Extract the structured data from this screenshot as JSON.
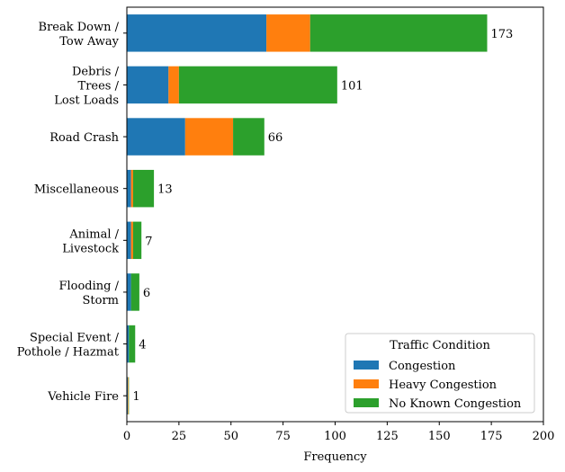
{
  "chart_data": {
    "type": "bar",
    "orientation": "horizontal",
    "stacked": true,
    "categories": [
      [
        "Break Down /",
        "Tow Away"
      ],
      [
        "Debris /",
        "Trees /",
        "Lost Loads"
      ],
      [
        "Road Crash"
      ],
      [
        "Miscellaneous"
      ],
      [
        "Animal /",
        "Livestock"
      ],
      [
        "Flooding /",
        "Storm"
      ],
      [
        "Special Event /",
        "Pothole / Hazmat"
      ],
      [
        "Vehicle Fire"
      ]
    ],
    "series": [
      {
        "name": "Congestion",
        "color": "#1f77b4",
        "values": [
          67,
          20,
          28,
          2,
          2,
          2,
          1,
          0.5
        ]
      },
      {
        "name": "Heavy Congestion",
        "color": "#ff7f0e",
        "values": [
          21,
          5,
          23,
          1,
          1,
          0,
          0,
          0.3
        ]
      },
      {
        "name": "No Known Congestion",
        "color": "#2ca02c",
        "values": [
          85,
          76,
          15,
          10,
          4,
          4,
          3,
          0.2
        ]
      }
    ],
    "totals": [
      "173",
      "101",
      "66",
      "13",
      "7",
      "6",
      "4",
      "1"
    ],
    "xlabel": "Frequency",
    "ylabel": "",
    "xlim": [
      0,
      200
    ],
    "xticks": [
      0,
      25,
      50,
      75,
      100,
      125,
      150,
      175,
      200
    ],
    "grid": false,
    "legend": {
      "title": "Traffic Condition",
      "placement": "lower-right"
    }
  }
}
